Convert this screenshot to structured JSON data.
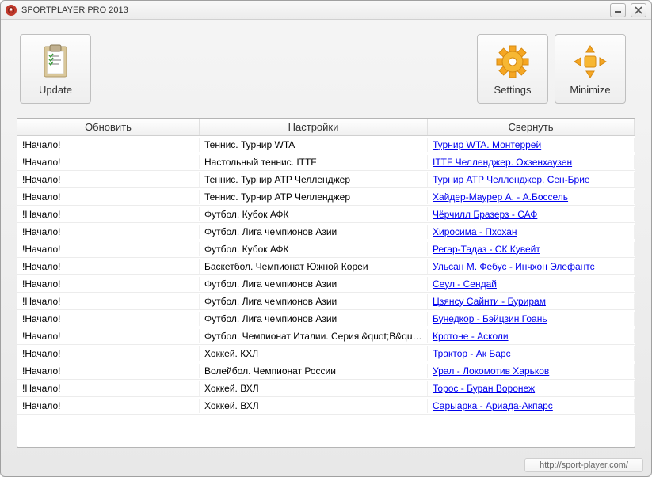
{
  "window": {
    "title": "SPORTPLAYER PRO 2013"
  },
  "toolbar": {
    "update_label": "Update",
    "settings_label": "Settings",
    "minimize_label": "Minimize"
  },
  "columns": {
    "col1": "Обновить",
    "col2": "Настройки",
    "col3": "Свернуть"
  },
  "rows": [
    {
      "c1": "!Начало!",
      "c2": "Теннис. Турнир WTA",
      "c3": "Турнир WTA. Монтеррей"
    },
    {
      "c1": "!Начало!",
      "c2": "Настольный теннис. ITTF",
      "c3": "ITTF Челленджер. Охзенхаузен"
    },
    {
      "c1": "!Начало!",
      "c2": "Теннис. Турнир ATP Челленджер",
      "c3": "Турнир ATP Челленджер. Сен-Брие"
    },
    {
      "c1": "!Начало!",
      "c2": "Теннис. Турнир ATP Челленджер",
      "c3": "Хайдер-Маурер А. -  А.Боссель"
    },
    {
      "c1": "!Начало!",
      "c2": "Футбол. Кубок АФК",
      "c3": "Чёрчилл Бразерз -  САФ"
    },
    {
      "c1": "!Начало!",
      "c2": "Футбол. Лига чемпионов Азии",
      "c3": "Хиросима -  Пхохан"
    },
    {
      "c1": "!Начало!",
      "c2": "Футбол. Кубок АФК",
      "c3": "Регар-Тадаз -  СК Кувейт"
    },
    {
      "c1": "!Начало!",
      "c2": "Баскетбол. Чемпионат Южной Кореи",
      "c3": "Ульсан М. Фебус -  Инчхон Элефантс"
    },
    {
      "c1": "!Начало!",
      "c2": "Футбол. Лига чемпионов Азии",
      "c3": "Сеул -  Сендай"
    },
    {
      "c1": "!Начало!",
      "c2": "Футбол. Лига чемпионов Азии",
      "c3": "Цзянсу Сайнти -  Бурирам"
    },
    {
      "c1": "!Начало!",
      "c2": "Футбол. Лига чемпионов Азии",
      "c3": "Бунедкор -  Бэйцзин Гоань"
    },
    {
      "c1": "!Начало!",
      "c2": "Футбол. Чемпионат Италии. Серия &quot;B&quot;",
      "c3": "Кротоне -  Асколи"
    },
    {
      "c1": "!Начало!",
      "c2": "Хоккей. КХЛ",
      "c3": "Трактор -  Ак Барс"
    },
    {
      "c1": "!Начало!",
      "c2": "Волейбол. Чемпионат России",
      "c3": "Урал -  Локомотив Харьков"
    },
    {
      "c1": "!Начало!",
      "c2": "Хоккей. ВХЛ",
      "c3": "Торос -  Буран Воронеж"
    },
    {
      "c1": "!Начало!",
      "c2": "Хоккей. ВХЛ",
      "c3": "Сарыарка -  Ариада-Акпарс"
    }
  ],
  "footer": {
    "url": "http://sport-player.com/"
  },
  "colors": {
    "link": "#0000ee",
    "gear": "#f5a623",
    "clipboard_body": "#f5deb3",
    "clipboard_clip": "#b0a080"
  }
}
